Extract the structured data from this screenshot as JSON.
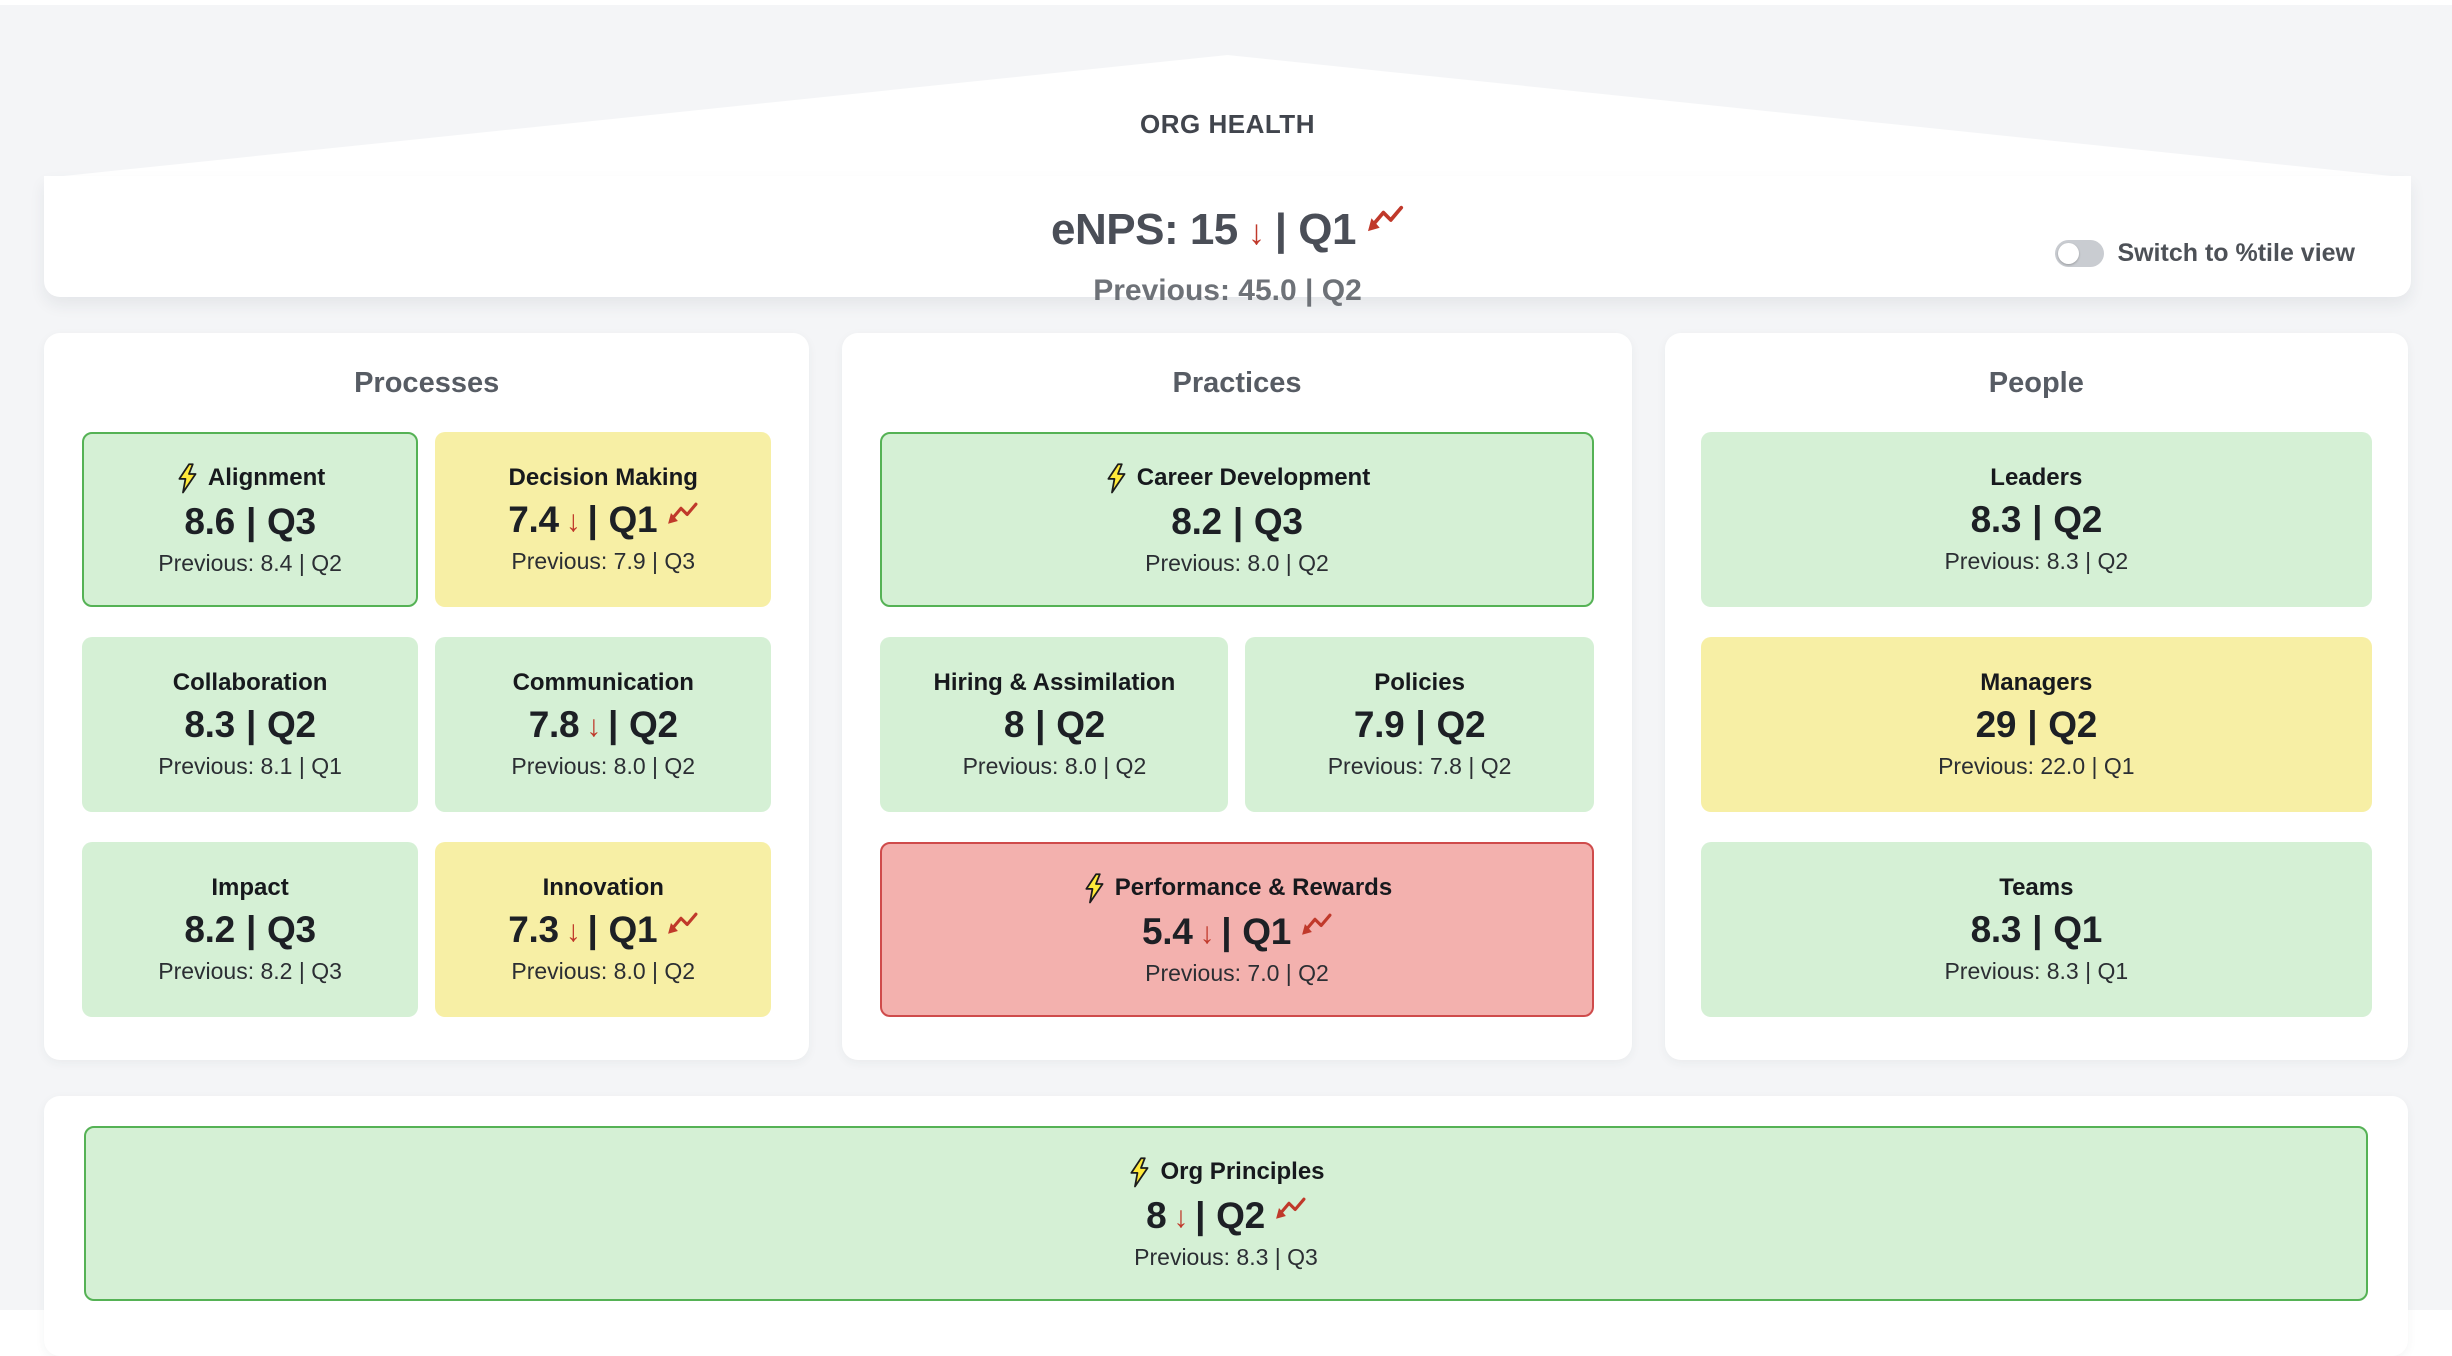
{
  "header": {
    "title": "ORG HEALTH",
    "metric_main": "eNPS: 15",
    "metric_arrow": "↓",
    "metric_quarter": "| Q1",
    "previous": "Previous: 45.0 | Q2",
    "toggle_label": "Switch to %tile view",
    "toggle_state": "off"
  },
  "columns": [
    {
      "title": "Processes",
      "cards": [
        {
          "name": "Alignment",
          "value": "8.6",
          "quarter": "Q3",
          "previous": "Previous: 8.4 | Q2",
          "status": "green",
          "bolt": true,
          "down": false,
          "trend": false,
          "wide": false
        },
        {
          "name": "Decision Making",
          "value": "7.4",
          "quarter": "Q1",
          "previous": "Previous: 7.9 | Q3",
          "status": "yellow",
          "bolt": false,
          "down": true,
          "trend": true,
          "wide": false
        },
        {
          "name": "Collaboration",
          "value": "8.3",
          "quarter": "Q2",
          "previous": "Previous: 8.1 | Q1",
          "status": "green",
          "bolt": false,
          "down": false,
          "trend": false,
          "wide": false
        },
        {
          "name": "Communication",
          "value": "7.8",
          "quarter": "Q2",
          "previous": "Previous: 8.0 | Q2",
          "status": "green",
          "bolt": false,
          "down": true,
          "trend": false,
          "wide": false
        },
        {
          "name": "Impact",
          "value": "8.2",
          "quarter": "Q3",
          "previous": "Previous: 8.2 | Q3",
          "status": "green",
          "bolt": false,
          "down": false,
          "trend": false,
          "wide": false
        },
        {
          "name": "Innovation",
          "value": "7.3",
          "quarter": "Q1",
          "previous": "Previous: 8.0 | Q2",
          "status": "yellow",
          "bolt": false,
          "down": true,
          "trend": true,
          "wide": false
        }
      ]
    },
    {
      "title": "Practices",
      "cards": [
        {
          "name": "Career Development",
          "value": "8.2",
          "quarter": "Q3",
          "previous": "Previous: 8.0 | Q2",
          "status": "green",
          "bolt": true,
          "down": false,
          "trend": false,
          "wide": true
        },
        {
          "name": "Hiring & Assimilation",
          "value": "8",
          "quarter": "Q2",
          "previous": "Previous: 8.0 | Q2",
          "status": "green",
          "bolt": false,
          "down": false,
          "trend": false,
          "wide": false
        },
        {
          "name": "Policies",
          "value": "7.9",
          "quarter": "Q2",
          "previous": "Previous: 7.8 | Q2",
          "status": "green",
          "bolt": false,
          "down": false,
          "trend": false,
          "wide": false
        },
        {
          "name": "Performance & Rewards",
          "value": "5.4",
          "quarter": "Q1",
          "previous": "Previous: 7.0 | Q2",
          "status": "red",
          "bolt": true,
          "down": true,
          "trend": true,
          "wide": true
        }
      ]
    },
    {
      "title": "People",
      "cards": [
        {
          "name": "Leaders",
          "value": "8.3",
          "quarter": "Q2",
          "previous": "Previous: 8.3 | Q2",
          "status": "green",
          "bolt": false,
          "down": false,
          "trend": false,
          "wide": true
        },
        {
          "name": "Managers",
          "value": "29",
          "quarter": "Q2",
          "previous": "Previous: 22.0 | Q1",
          "status": "yellow",
          "bolt": false,
          "down": false,
          "trend": false,
          "wide": true
        },
        {
          "name": "Teams",
          "value": "8.3",
          "quarter": "Q1",
          "previous": "Previous: 8.3 | Q1",
          "status": "green",
          "bolt": false,
          "down": false,
          "trend": false,
          "wide": true
        }
      ]
    }
  ],
  "footer_card": {
    "name": "Org Principles",
    "value": "8",
    "quarter": "Q2",
    "previous": "Previous: 8.3 | Q3",
    "status": "green",
    "bolt": true,
    "down": true,
    "trend": true,
    "wide": true
  },
  "colors": {
    "green_bg": "#d5f0d5",
    "green_border": "#55b255",
    "yellow_bg": "#f7efa5",
    "red_bg": "#f3b1ae",
    "red_border": "#cf4b4b",
    "accent_red": "#c0392b",
    "bolt_yellow": "#ffe93a",
    "page_bg": "#f4f5f7"
  }
}
